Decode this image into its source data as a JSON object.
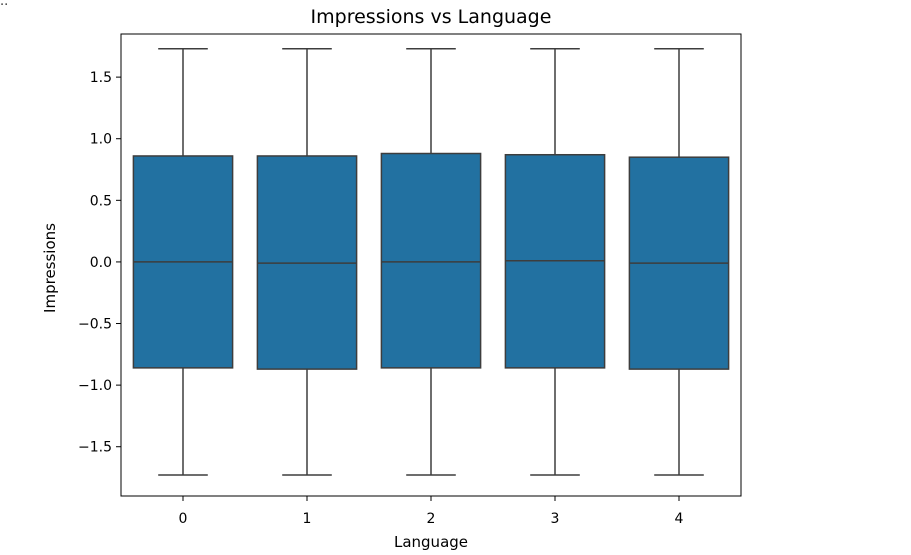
{
  "corner_mark": "..",
  "chart_data": {
    "type": "box",
    "title": "Impressions vs Language",
    "xlabel": "Language",
    "ylabel": "Impressions",
    "ylim": [
      -1.9,
      1.85
    ],
    "yticks": [
      -1.5,
      -1.0,
      -0.5,
      0.0,
      0.5,
      1.0,
      1.5
    ],
    "ytick_labels": [
      "−1.5",
      "−1.0",
      "−0.5",
      "0.0",
      "0.5",
      "1.0",
      "1.5"
    ],
    "categories": [
      "0",
      "1",
      "2",
      "3",
      "4"
    ],
    "boxes": [
      {
        "category": "0",
        "whisker_low": -1.73,
        "q1": -0.86,
        "median": 0.0,
        "q3": 0.86,
        "whisker_high": 1.73
      },
      {
        "category": "1",
        "whisker_low": -1.73,
        "q1": -0.87,
        "median": -0.01,
        "q3": 0.86,
        "whisker_high": 1.73
      },
      {
        "category": "2",
        "whisker_low": -1.73,
        "q1": -0.86,
        "median": 0.0,
        "q3": 0.88,
        "whisker_high": 1.73
      },
      {
        "category": "3",
        "whisker_low": -1.73,
        "q1": -0.86,
        "median": 0.01,
        "q3": 0.87,
        "whisker_high": 1.73
      },
      {
        "category": "4",
        "whisker_low": -1.73,
        "q1": -0.87,
        "median": -0.01,
        "q3": 0.85,
        "whisker_high": 1.73
      }
    ],
    "box_color": "#2271a1",
    "line_color": "#3d3d3d",
    "grid": false,
    "legend": "none"
  }
}
